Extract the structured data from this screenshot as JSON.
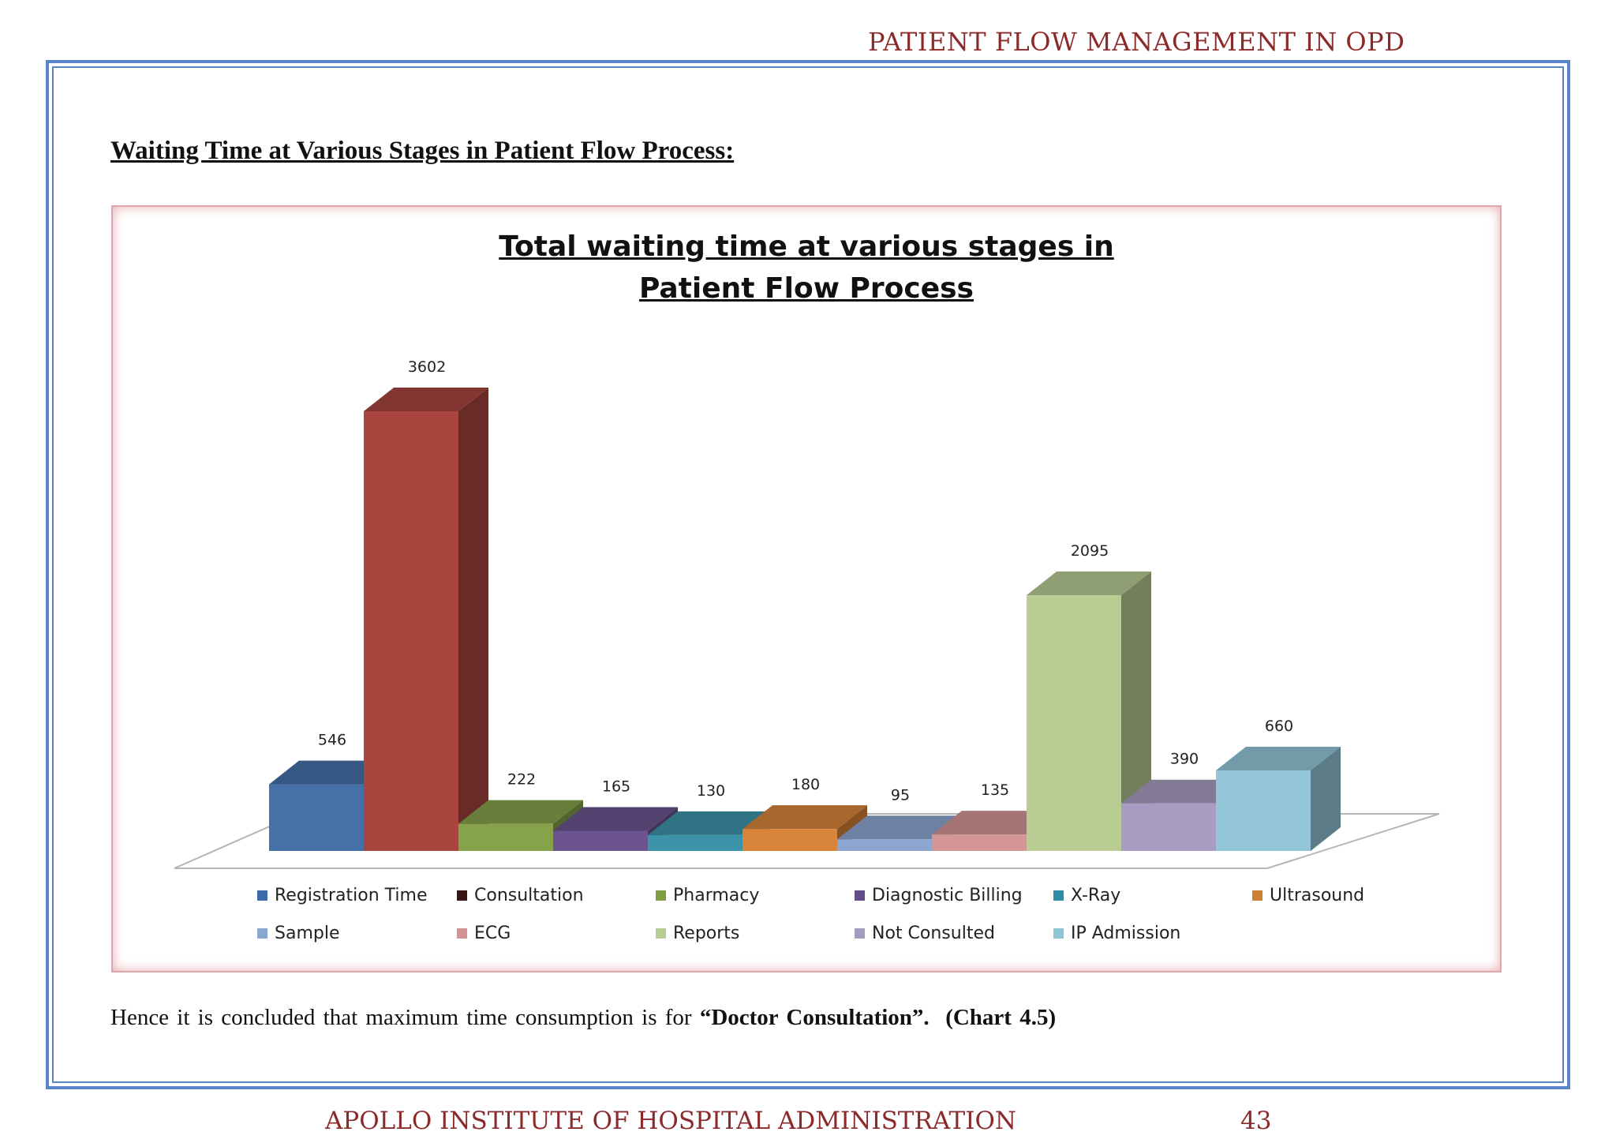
{
  "header": {
    "title": "PATIENT FLOW MANAGEMENT IN OPD"
  },
  "section": {
    "heading": "Waiting Time at Various Stages in Patient Flow Process:"
  },
  "chart_data": {
    "type": "bar",
    "style": "3d-column",
    "title_lines": [
      "Total waiting time at various stages in",
      "Patient Flow Process"
    ],
    "categories": [
      "Registration Time",
      "Consultation",
      "Pharmacy",
      "Diagnostic Billing",
      "X-Ray",
      "Ultrasound",
      "Sample",
      "ECG",
      "Reports",
      "Not Consulted",
      "IP Admission"
    ],
    "values": [
      546,
      3602,
      222,
      165,
      130,
      180,
      95,
      135,
      2095,
      390,
      660
    ],
    "colors": [
      "#4570a8",
      "#a8453f",
      "#86a24a",
      "#6b548f",
      "#3d93aa",
      "#d8843a",
      "#8da5d0",
      "#d49595",
      "#b8cc94",
      "#a89dc0",
      "#92c6d8"
    ],
    "legend_colors": [
      "#3d6ba6",
      "#3a1414",
      "#7f9e44",
      "#654d8c",
      "#2f8ea6",
      "#d07e32",
      "#8ba7d1",
      "#d39393",
      "#b7cc92",
      "#a69cbf",
      "#8ec5d7"
    ],
    "show_data_labels": true,
    "legend_position": "bottom",
    "grid": false,
    "xlabel": "",
    "ylabel": ""
  },
  "conclusion": {
    "prefix": "Hence it is concluded that maximum time consumption is for ",
    "highlight": "“Doctor Consultation”.",
    "reference": "(Chart 4.5)"
  },
  "footer": {
    "institute": "APOLLO INSTITUTE OF HOSPITAL ADMINISTRATION",
    "page_number": "43"
  }
}
